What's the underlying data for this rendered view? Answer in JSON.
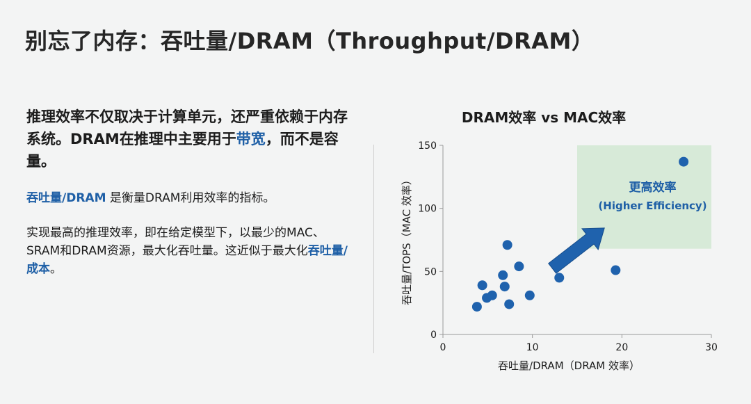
{
  "page": {
    "title": "别忘了内存：吞吐量/DRAM（Throughput/DRAM）"
  },
  "left": {
    "lead_part1": "推理效率不仅取决于计算单元，还严重依赖于内存系统。DRAM在推理中主要用于",
    "lead_accent": "带宽",
    "lead_part2": "，而不是容量。",
    "p2_accent": "吞吐量/DRAM",
    "p2_text": " 是衡量DRAM利用效率的指标。",
    "p3_text": "实现最高的推理效率，即在给定模型下，以最少的MAC、SRAM和DRAM资源，最大化吞吐量。这近似于最大化",
    "p3_accent": "吞吐量/成本",
    "p3_end": "。"
  },
  "colors": {
    "accent": "#1e5fa6",
    "point": "#1f62ad",
    "region": "#d7ead8",
    "arrow": "#1f62ad"
  },
  "chart_data": {
    "type": "scatter",
    "title": "DRAM效率 vs MAC效率",
    "xlabel": "吞吐量/DRAM（DRAM 效率）",
    "ylabel": "吞吐量/TOPS（MAC 效率）",
    "xlim": [
      0,
      30
    ],
    "ylim": [
      0,
      150
    ],
    "xticks": [
      0,
      10,
      20,
      30
    ],
    "yticks": [
      0,
      50,
      100,
      150
    ],
    "grid": false,
    "points": [
      {
        "x": 3.8,
        "y": 22
      },
      {
        "x": 4.4,
        "y": 39
      },
      {
        "x": 4.9,
        "y": 29
      },
      {
        "x": 5.5,
        "y": 31
      },
      {
        "x": 6.7,
        "y": 47
      },
      {
        "x": 6.9,
        "y": 38
      },
      {
        "x": 7.2,
        "y": 71
      },
      {
        "x": 7.4,
        "y": 24
      },
      {
        "x": 8.5,
        "y": 54
      },
      {
        "x": 9.7,
        "y": 31
      },
      {
        "x": 13.0,
        "y": 45
      },
      {
        "x": 19.3,
        "y": 51
      },
      {
        "x": 26.9,
        "y": 137
      }
    ],
    "region": {
      "x": [
        15,
        30
      ],
      "y": [
        68,
        150
      ]
    },
    "annotation": {
      "title": "更高效率",
      "subtitle": "(Higher Efficiency)"
    }
  }
}
